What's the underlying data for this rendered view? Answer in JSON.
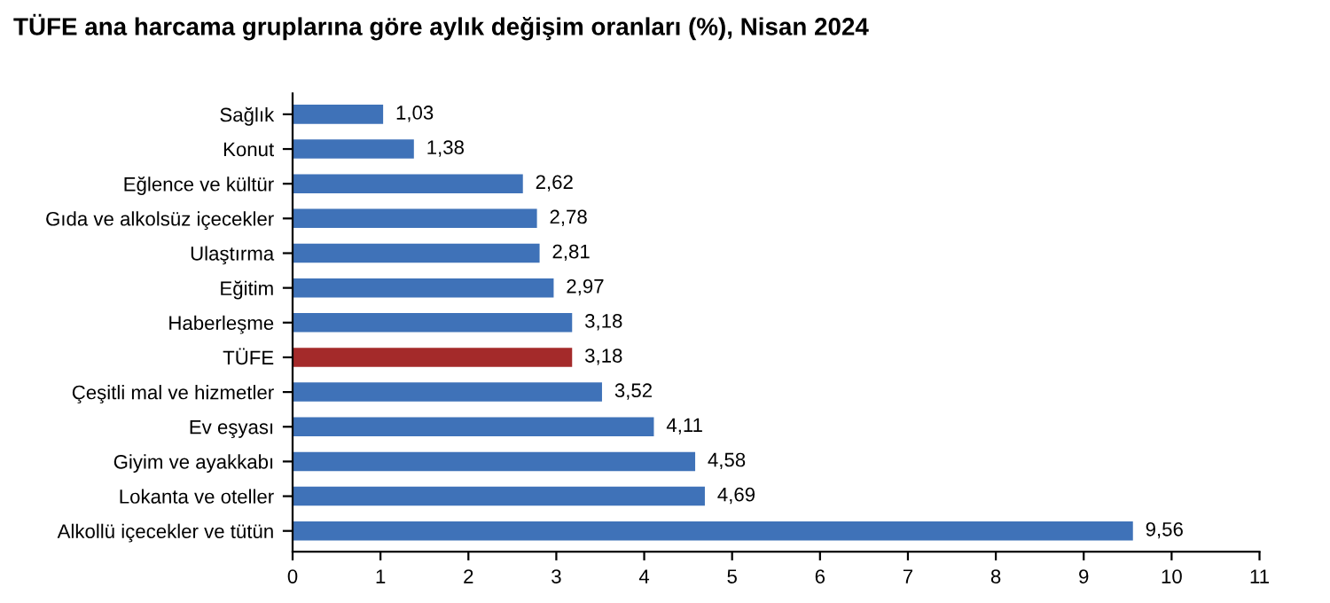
{
  "chart_data": {
    "type": "bar",
    "orientation": "horizontal",
    "title": "TÜFE ana harcama gruplarına göre aylık değişim oranları (%), Nisan 2024",
    "categories": [
      "Sağlık",
      "Konut",
      "Eğlence ve kültür",
      "Gıda ve alkolsüz içecekler",
      "Ulaştırma",
      "Eğitim",
      "Haberleşme",
      "TÜFE",
      "Çeşitli mal ve hizmetler",
      "Ev eşyası",
      "Giyim ve ayakkabı",
      "Lokanta ve oteller",
      "Alkollü içecekler ve tütün"
    ],
    "values": [
      1.03,
      1.38,
      2.62,
      2.78,
      2.81,
      2.97,
      3.18,
      3.18,
      3.52,
      4.11,
      4.58,
      4.69,
      9.56
    ],
    "value_labels": [
      "1,03",
      "1,38",
      "2,62",
      "2,78",
      "2,81",
      "2,97",
      "3,18",
      "3,18",
      "3,52",
      "4,11",
      "4,58",
      "4,69",
      "9,56"
    ],
    "colors": [
      "#3f72b8",
      "#3f72b8",
      "#3f72b8",
      "#3f72b8",
      "#3f72b8",
      "#3f72b8",
      "#3f72b8",
      "#a42a2a",
      "#3f72b8",
      "#3f72b8",
      "#3f72b8",
      "#3f72b8",
      "#3f72b8"
    ],
    "xlim": [
      0,
      11
    ],
    "xticks": [
      0,
      1,
      2,
      3,
      4,
      5,
      6,
      7,
      8,
      9,
      10,
      11
    ],
    "grid": false,
    "legend": false
  }
}
